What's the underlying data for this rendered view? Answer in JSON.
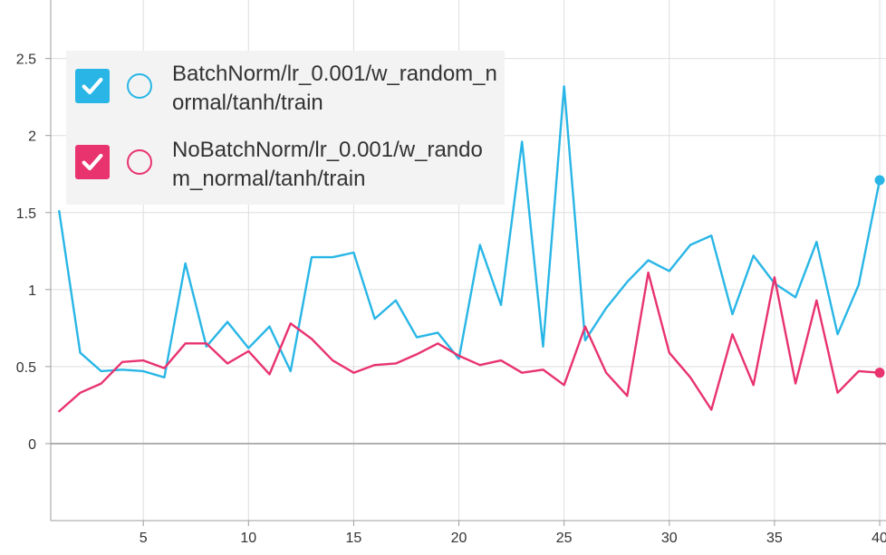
{
  "colors": {
    "series_blue": "#29b6e6",
    "series_pink": "#e8336f",
    "grid": "#dedede",
    "axis": "#9e9e9e"
  },
  "legend": {
    "items": [
      {
        "label": "BatchNorm/lr_0.001/w_random_normal/tanh/train",
        "checked": true,
        "color": "#29b6e6"
      },
      {
        "label": "NoBatchNorm/lr_0.001/w_random_normal/tanh/train",
        "checked": true,
        "color": "#e8336f"
      }
    ]
  },
  "chart_data": {
    "type": "line",
    "title": "",
    "xlabel": "",
    "ylabel": "",
    "xlim": [
      0.6,
      40.3
    ],
    "ylim": [
      -0.5,
      2.88
    ],
    "x_ticks": [
      5,
      10,
      15,
      20,
      25,
      30,
      35,
      40
    ],
    "y_ticks": [
      0,
      0.5,
      1,
      1.5,
      2,
      2.5
    ],
    "grid": true,
    "legend_position": "top-left",
    "x": [
      1,
      2,
      3,
      4,
      5,
      6,
      7,
      8,
      9,
      10,
      11,
      12,
      13,
      14,
      15,
      16,
      17,
      18,
      19,
      20,
      21,
      22,
      23,
      24,
      25,
      26,
      27,
      28,
      29,
      30,
      31,
      32,
      33,
      34,
      35,
      36,
      37,
      38,
      39,
      40
    ],
    "series": [
      {
        "name": "BatchNorm/lr_0.001/w_random_normal/tanh/train",
        "color": "#29b6e6",
        "values": [
          1.51,
          0.59,
          0.47,
          0.48,
          0.47,
          0.43,
          1.17,
          0.63,
          0.79,
          0.62,
          0.76,
          0.47,
          1.21,
          1.21,
          1.24,
          0.81,
          0.93,
          0.69,
          0.72,
          0.55,
          1.29,
          0.9,
          1.96,
          0.63,
          2.32,
          0.67,
          0.88,
          1.05,
          1.19,
          1.12,
          1.29,
          1.35,
          0.84,
          1.22,
          1.04,
          0.95,
          1.31,
          0.71,
          1.03,
          1.71
        ]
      },
      {
        "name": "NoBatchNorm/lr_0.001/w_random_normal/tanh/train",
        "color": "#e8336f",
        "values": [
          0.21,
          0.33,
          0.39,
          0.53,
          0.54,
          0.49,
          0.65,
          0.65,
          0.52,
          0.6,
          0.45,
          0.78,
          0.68,
          0.54,
          0.46,
          0.51,
          0.52,
          0.58,
          0.65,
          0.57,
          0.51,
          0.54,
          0.46,
          0.48,
          0.38,
          0.76,
          0.46,
          0.31,
          1.11,
          0.59,
          0.43,
          0.22,
          0.71,
          0.38,
          1.08,
          0.39,
          0.93,
          0.33,
          0.47,
          0.46
        ]
      }
    ]
  }
}
